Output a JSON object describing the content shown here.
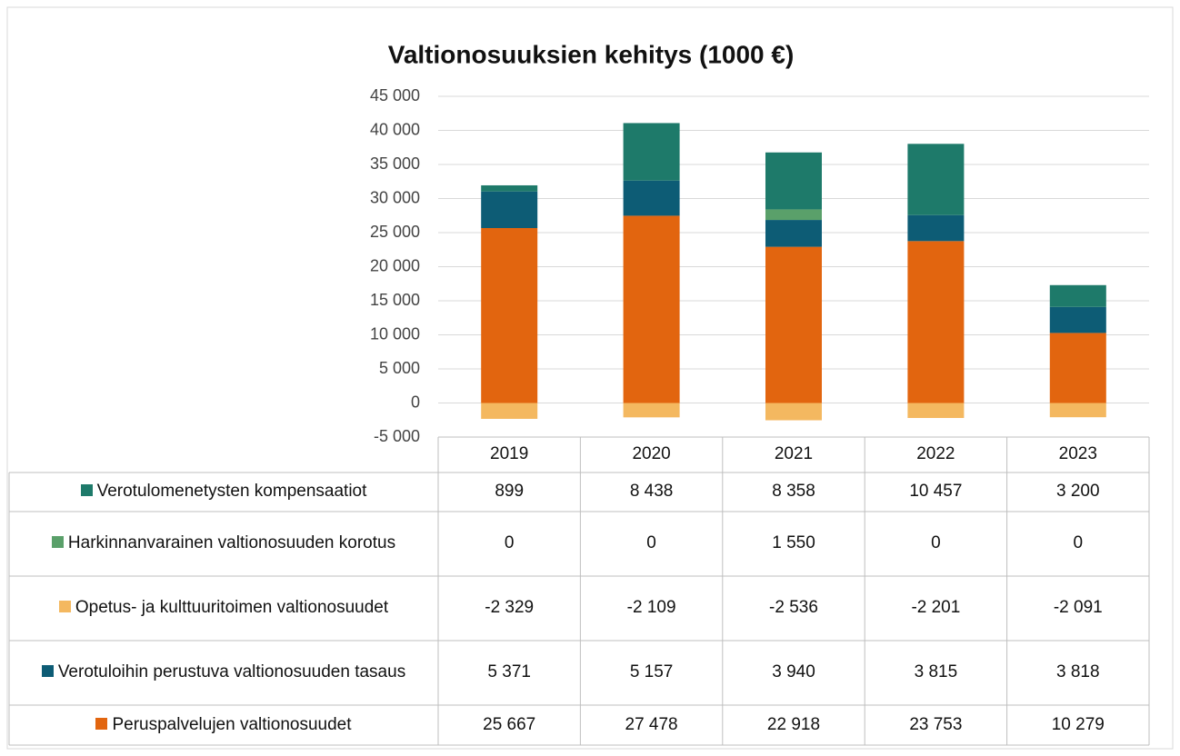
{
  "chart_data": {
    "type": "bar",
    "stacked": true,
    "title": "Valtionosuuksien kehitys (1000 €)",
    "categories": [
      "2019",
      "2020",
      "2021",
      "2022",
      "2023"
    ],
    "series": [
      {
        "name": "Verotulomenetysten kompensaatiot",
        "color": "#1e7a6a",
        "values": [
          899,
          8438,
          8358,
          10457,
          3200
        ],
        "value_labels": [
          "899",
          "8 438",
          "8 358",
          "10 457",
          "3 200"
        ]
      },
      {
        "name": "Harkinnanvarainen valtionosuuden korotus",
        "color": "#5aa06a",
        "values": [
          0,
          0,
          1550,
          0,
          0
        ],
        "value_labels": [
          "0",
          "0",
          "1 550",
          "0",
          "0"
        ]
      },
      {
        "name": "Opetus- ja kulttuuritoimen valtionosuudet",
        "color": "#f4b860",
        "values": [
          -2329,
          -2109,
          -2536,
          -2201,
          -2091
        ],
        "value_labels": [
          "-2 329",
          "-2 109",
          "-2 536",
          "-2 201",
          "-2 091"
        ]
      },
      {
        "name": "Verotuloihin perustuva valtionosuuden tasaus",
        "color": "#0d5c75",
        "values": [
          5371,
          5157,
          3940,
          3815,
          3818
        ],
        "value_labels": [
          "5 371",
          "5 157",
          "3 940",
          "3 815",
          "3 818"
        ]
      },
      {
        "name": "Peruspalvelujen valtionosuudet",
        "color": "#e2650f",
        "values": [
          25667,
          27478,
          22918,
          23753,
          10279
        ],
        "value_labels": [
          "25 667",
          "27 478",
          "22 918",
          "23 753",
          "10 279"
        ]
      }
    ],
    "ylim": [
      -5000,
      45000
    ],
    "yticks": [
      {
        "value": -5000,
        "label": "-5 000"
      },
      0,
      {
        "value": 5000,
        "label": "5 000"
      },
      {
        "value": 10000,
        "label": "10 000"
      },
      {
        "value": 15000,
        "label": "15 000"
      },
      {
        "value": 20000,
        "label": "20 000"
      },
      {
        "value": 25000,
        "label": "25 000"
      },
      {
        "value": 30000,
        "label": "30 000"
      },
      {
        "value": 35000,
        "label": "35 000"
      },
      {
        "value": 40000,
        "label": "40 000"
      },
      {
        "value": 45000,
        "label": "45 000"
      }
    ],
    "grid": true,
    "data_table": true
  }
}
